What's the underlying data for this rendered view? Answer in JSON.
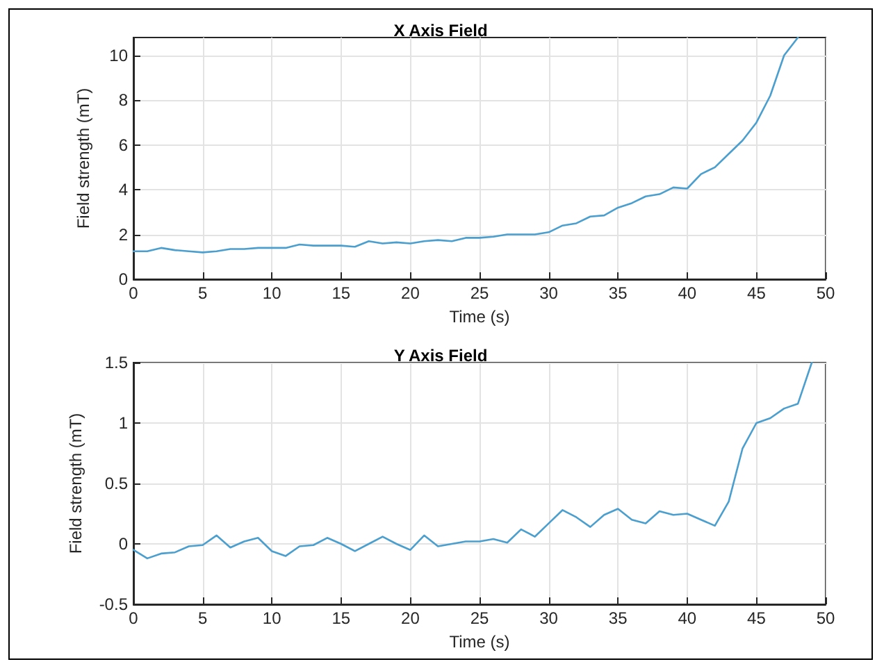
{
  "chart_data": [
    {
      "type": "line",
      "title": "X Axis Field",
      "xlabel": "Time (s)",
      "ylabel": "Field strength (mT)",
      "xlim": [
        0,
        50
      ],
      "xticks": [
        0,
        5,
        10,
        15,
        20,
        25,
        30,
        35,
        40,
        45,
        50
      ],
      "ylim": [
        0,
        10.8
      ],
      "yticks": [
        0,
        2,
        4,
        6,
        8,
        10
      ],
      "grid": true,
      "marker": "none",
      "line_style": "solid",
      "x": [
        0,
        1,
        2,
        3,
        4,
        5,
        6,
        7,
        8,
        9,
        10,
        11,
        12,
        13,
        14,
        15,
        16,
        17,
        18,
        19,
        20,
        21,
        22,
        23,
        24,
        25,
        26,
        27,
        28,
        29,
        30,
        31,
        32,
        33,
        34,
        35,
        36,
        37,
        38,
        39,
        40,
        41,
        42,
        43,
        44,
        45,
        46,
        47,
        48
      ],
      "series": [
        {
          "color": "#4a9fcf",
          "values": [
            1.25,
            1.25,
            1.4,
            1.3,
            1.25,
            1.2,
            1.25,
            1.35,
            1.35,
            1.4,
            1.4,
            1.4,
            1.55,
            1.5,
            1.5,
            1.5,
            1.45,
            1.7,
            1.6,
            1.65,
            1.6,
            1.7,
            1.75,
            1.7,
            1.85,
            1.85,
            1.9,
            2.0,
            2.0,
            2.0,
            2.1,
            2.4,
            2.5,
            2.8,
            2.85,
            3.2,
            3.4,
            3.7,
            3.8,
            4.1,
            4.05,
            4.7,
            5.0,
            5.6,
            6.2,
            7.0,
            8.2,
            10.0,
            10.8
          ]
        }
      ]
    },
    {
      "type": "line",
      "title": "Y Axis Field",
      "xlabel": "Time (s)",
      "ylabel": "Field strength (mT)",
      "xlim": [
        0,
        50
      ],
      "xticks": [
        0,
        5,
        10,
        15,
        20,
        25,
        30,
        35,
        40,
        45,
        50
      ],
      "ylim": [
        -0.5,
        1.5
      ],
      "yticks": [
        -0.5,
        0,
        0.5,
        1,
        1.5
      ],
      "grid": true,
      "marker": "none",
      "line_style": "solid",
      "x": [
        0,
        1,
        2,
        3,
        4,
        5,
        6,
        7,
        8,
        9,
        10,
        11,
        12,
        13,
        14,
        15,
        16,
        17,
        18,
        19,
        20,
        21,
        22,
        23,
        24,
        25,
        26,
        27,
        28,
        29,
        30,
        31,
        32,
        33,
        34,
        35,
        36,
        37,
        38,
        39,
        40,
        41,
        42,
        43,
        44,
        45,
        46,
        47,
        48,
        49
      ],
      "series": [
        {
          "color": "#4a9fcf",
          "values": [
            -0.05,
            -0.12,
            -0.08,
            -0.07,
            -0.02,
            -0.01,
            0.07,
            -0.03,
            0.02,
            0.05,
            -0.06,
            -0.1,
            -0.02,
            -0.01,
            0.05,
            0,
            -0.06,
            0,
            0.06,
            0,
            -0.05,
            0.07,
            -0.02,
            0,
            0.02,
            0.02,
            0.04,
            0.01,
            0.12,
            0.06,
            0.17,
            0.28,
            0.22,
            0.14,
            0.24,
            0.29,
            0.2,
            0.17,
            0.27,
            0.24,
            0.25,
            0.2,
            0.15,
            0.35,
            0.79,
            1.0,
            1.04,
            1.12,
            1.16,
            1.5
          ]
        }
      ]
    }
  ]
}
